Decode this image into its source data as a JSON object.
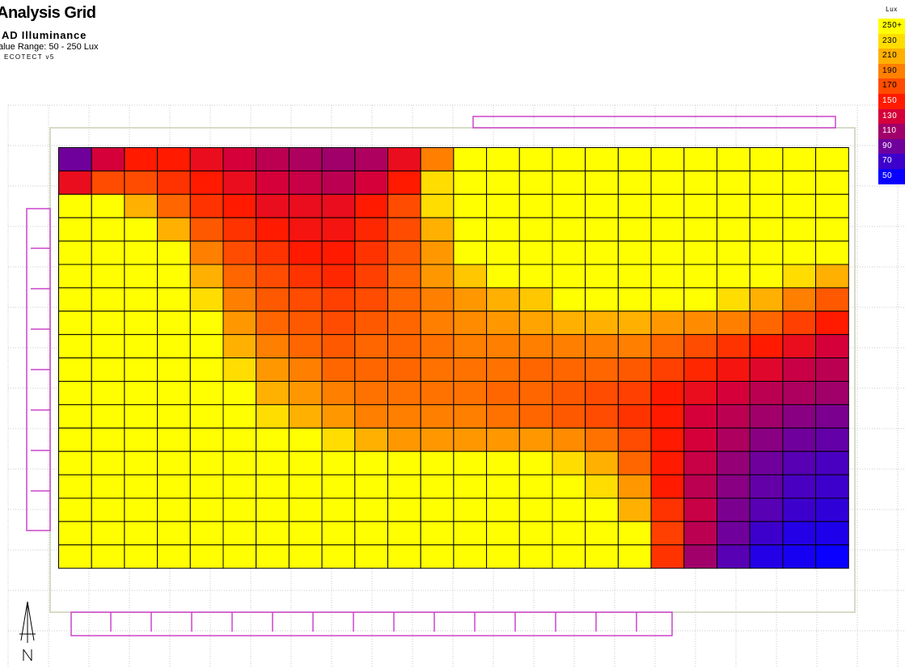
{
  "header": {
    "title": "Analysis Grid",
    "subtitle": "AD Illuminance",
    "range": "alue Range: 50 - 250 Lux",
    "software": "ECOTECT v5"
  },
  "legend": {
    "title": "Lux",
    "items": [
      {
        "label": "250+",
        "color": "#ffff00",
        "text_color": "#000000"
      },
      {
        "label": "230",
        "color": "#ffdd00",
        "text_color": "#000000"
      },
      {
        "label": "210",
        "color": "#ffb000",
        "text_color": "#000000"
      },
      {
        "label": "190",
        "color": "#ff7f00",
        "text_color": "#000000"
      },
      {
        "label": "170",
        "color": "#ff4c00",
        "text_color": "#000000"
      },
      {
        "label": "150",
        "color": "#ff1a00",
        "text_color": "#ffffff"
      },
      {
        "label": "130",
        "color": "#d5003a",
        "text_color": "#ffffff"
      },
      {
        "label": "110",
        "color": "#a1006a",
        "text_color": "#ffffff"
      },
      {
        "label": "90",
        "color": "#70009c",
        "text_color": "#ffffff"
      },
      {
        "label": "70",
        "color": "#3d00cc",
        "text_color": "#ffffff"
      },
      {
        "label": "50",
        "color": "#0a00ff",
        "text_color": "#ffffff"
      }
    ]
  },
  "chart_data": {
    "type": "heatmap",
    "title": "Analysis Grid",
    "subtitle": "AD Illuminance",
    "unit": "Lux",
    "value_range": [
      50,
      250
    ],
    "rows": 18,
    "cols": 24,
    "values": [
      [
        90,
        130,
        150,
        150,
        140,
        130,
        120,
        115,
        110,
        115,
        140,
        190,
        250,
        250,
        250,
        250,
        250,
        250,
        250,
        250,
        250,
        250,
        250,
        250
      ],
      [
        140,
        170,
        170,
        160,
        150,
        140,
        130,
        125,
        120,
        130,
        150,
        230,
        250,
        250,
        250,
        250,
        250,
        250,
        250,
        250,
        250,
        250,
        250,
        250
      ],
      [
        250,
        250,
        210,
        180,
        160,
        150,
        140,
        140,
        140,
        150,
        170,
        230,
        250,
        250,
        250,
        250,
        250,
        250,
        250,
        250,
        250,
        250,
        250,
        250
      ],
      [
        250,
        250,
        250,
        210,
        175,
        160,
        150,
        145,
        145,
        155,
        170,
        210,
        250,
        250,
        250,
        250,
        250,
        250,
        250,
        250,
        250,
        250,
        250,
        250
      ],
      [
        250,
        250,
        250,
        250,
        190,
        170,
        160,
        150,
        150,
        160,
        175,
        200,
        250,
        250,
        250,
        250,
        250,
        250,
        250,
        250,
        250,
        250,
        250,
        250
      ],
      [
        250,
        250,
        250,
        250,
        210,
        180,
        170,
        160,
        155,
        165,
        180,
        200,
        220,
        250,
        250,
        250,
        250,
        250,
        250,
        250,
        250,
        250,
        230,
        210
      ],
      [
        250,
        250,
        250,
        250,
        230,
        190,
        175,
        170,
        165,
        170,
        180,
        190,
        200,
        210,
        220,
        250,
        250,
        250,
        250,
        250,
        230,
        210,
        190,
        175
      ],
      [
        250,
        250,
        250,
        250,
        250,
        200,
        180,
        175,
        170,
        175,
        180,
        190,
        195,
        200,
        205,
        210,
        210,
        210,
        200,
        195,
        190,
        180,
        165,
        150
      ],
      [
        250,
        250,
        250,
        250,
        250,
        210,
        190,
        180,
        175,
        180,
        180,
        185,
        190,
        190,
        190,
        190,
        190,
        190,
        180,
        170,
        160,
        150,
        140,
        130
      ],
      [
        250,
        250,
        250,
        250,
        250,
        230,
        200,
        190,
        180,
        180,
        180,
        185,
        185,
        185,
        180,
        180,
        180,
        175,
        165,
        155,
        145,
        135,
        125,
        120
      ],
      [
        250,
        250,
        250,
        250,
        250,
        250,
        210,
        200,
        190,
        185,
        185,
        185,
        185,
        180,
        180,
        175,
        170,
        165,
        150,
        140,
        130,
        120,
        115,
        110
      ],
      [
        250,
        250,
        250,
        250,
        250,
        250,
        230,
        210,
        200,
        190,
        190,
        190,
        190,
        185,
        180,
        175,
        170,
        160,
        150,
        130,
        120,
        110,
        100,
        95
      ],
      [
        250,
        250,
        250,
        250,
        250,
        250,
        250,
        250,
        230,
        210,
        200,
        200,
        200,
        200,
        200,
        195,
        185,
        170,
        150,
        130,
        115,
        100,
        90,
        85
      ],
      [
        250,
        250,
        250,
        250,
        250,
        250,
        250,
        250,
        250,
        250,
        250,
        250,
        250,
        250,
        250,
        230,
        210,
        180,
        150,
        125,
        105,
        90,
        80,
        75
      ],
      [
        250,
        250,
        250,
        250,
        250,
        250,
        250,
        250,
        250,
        250,
        250,
        250,
        250,
        250,
        250,
        250,
        230,
        200,
        150,
        120,
        100,
        85,
        75,
        70
      ],
      [
        250,
        250,
        250,
        250,
        250,
        250,
        250,
        250,
        250,
        250,
        250,
        250,
        250,
        250,
        250,
        250,
        250,
        210,
        160,
        125,
        95,
        80,
        70,
        65
      ],
      [
        250,
        250,
        250,
        250,
        250,
        250,
        250,
        250,
        250,
        250,
        250,
        250,
        250,
        250,
        250,
        250,
        250,
        250,
        165,
        120,
        90,
        70,
        60,
        58
      ],
      [
        250,
        250,
        250,
        250,
        250,
        250,
        250,
        250,
        250,
        250,
        250,
        250,
        250,
        250,
        250,
        250,
        250,
        250,
        160,
        110,
        80,
        60,
        55,
        50
      ]
    ]
  }
}
